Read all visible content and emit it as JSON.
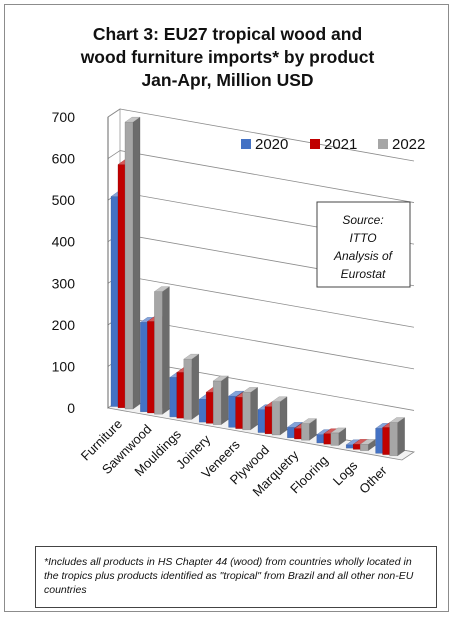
{
  "title_lines": [
    "Chart 3: EU27 tropical wood and",
    "wood furniture imports* by product",
    "Jan-Apr, Million USD"
  ],
  "source_lines": [
    "Source:",
    "ITTO",
    "Analysis of",
    "Eurostat"
  ],
  "footnote": "*Includes all products in HS Chapter 44 (wood) from countries wholly located in the tropics plus products identified as \"tropical\" from Brazil and all other non-EU countries",
  "colors": {
    "2020": "#4472C4",
    "2021": "#C00000",
    "2022": "#A6A6A6"
  },
  "chart_data": {
    "type": "bar",
    "title": "Chart 3: EU27 tropical wood and wood furniture imports* by product Jan-Apr, Million USD",
    "categories": [
      "Furniture",
      "Sawnwood",
      "Mouldings",
      "Joinery",
      "Veneers",
      "Plywood",
      "Marquetry",
      "Flooring",
      "Logs",
      "Other"
    ],
    "series": [
      {
        "name": "2020",
        "values": [
          505,
          215,
          95,
          55,
          75,
          55,
          25,
          20,
          8,
          60
        ]
      },
      {
        "name": "2021",
        "values": [
          585,
          220,
          110,
          75,
          75,
          65,
          25,
          25,
          12,
          65
        ]
      },
      {
        "name": "2022",
        "values": [
          690,
          295,
          145,
          105,
          90,
          80,
          40,
          30,
          15,
          80
        ]
      }
    ],
    "yticks": [
      "0",
      "100",
      "200",
      "300",
      "400",
      "500",
      "600",
      "700"
    ],
    "ylim": [
      0,
      700
    ],
    "grid": true,
    "legend": "top-right",
    "style": "3d-clustered-column"
  }
}
